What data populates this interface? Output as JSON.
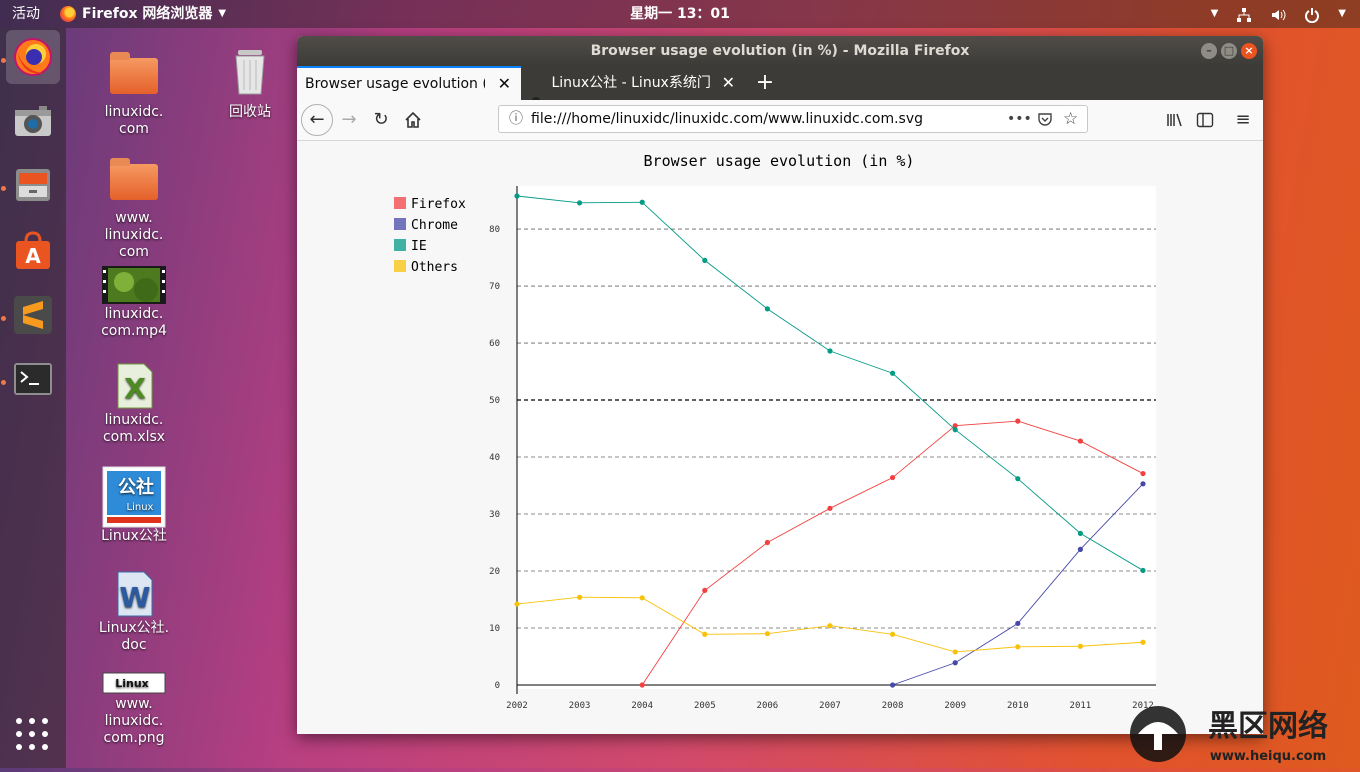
{
  "topbar": {
    "activities": "活动",
    "app_menu": "Firefox 网络浏览器",
    "clock": "星期一 13：01"
  },
  "desktop": {
    "icons": [
      {
        "label": "linuxidc.\ncom"
      },
      {
        "label": "回收站"
      },
      {
        "label": "www.\nlinuxidc.\ncom"
      },
      {
        "label": "linuxidc.\ncom.mp4"
      },
      {
        "label": "linuxidc.\ncom.xlsx"
      },
      {
        "label": "Linux公社"
      },
      {
        "label": "Linux公社.\ndoc"
      },
      {
        "label": "www.\nlinuxidc.\ncom.png"
      }
    ],
    "thumb_logo_text": "公社",
    "thumb_logo_sub": "Linux",
    "png_logo_text": "Linux"
  },
  "window": {
    "title": "Browser usage evolution (in %) - Mozilla Firefox",
    "tabs": [
      {
        "label": "Browser usage evolution (in %)"
      },
      {
        "label": "Linux公社 - Linux系统门户网站"
      }
    ],
    "url": "file:///home/linuxidc/linuxidc.com/www.linuxidc.com.svg"
  },
  "colors": {
    "accent": "#e95420",
    "firefox": "#f34141",
    "chrome": "#4649a7",
    "ie": "#049b84",
    "others": "#f8c20a"
  },
  "chart_data": {
    "type": "line",
    "title": "Browser usage evolution (in %)",
    "xlabel": "",
    "ylabel": "",
    "x": [
      "2002",
      "2003",
      "2004",
      "2005",
      "2006",
      "2007",
      "2008",
      "2009",
      "2010",
      "2011",
      "2012"
    ],
    "ylim": [
      0,
      87
    ],
    "yticks": [
      0,
      10,
      20,
      30,
      40,
      50,
      60,
      70,
      80
    ],
    "grid": true,
    "legend": "top-left",
    "series": [
      {
        "name": "Firefox",
        "values": [
          null,
          null,
          0,
          16.6,
          25,
          31,
          36.4,
          45.5,
          46.3,
          42.8,
          37.1
        ]
      },
      {
        "name": "Chrome",
        "values": [
          null,
          null,
          null,
          null,
          null,
          null,
          0,
          3.9,
          10.8,
          23.8,
          35.3
        ]
      },
      {
        "name": "IE",
        "values": [
          85.8,
          84.6,
          84.7,
          74.5,
          66,
          58.6,
          54.7,
          44.8,
          36.2,
          26.6,
          20.1
        ]
      },
      {
        "name": "Others",
        "values": [
          14.2,
          15.4,
          15.3,
          8.9,
          9,
          10.4,
          8.9,
          5.8,
          6.7,
          6.8,
          7.5
        ]
      }
    ]
  },
  "watermark": {
    "text": "黑区网络",
    "url": "www.heiqu.com"
  }
}
